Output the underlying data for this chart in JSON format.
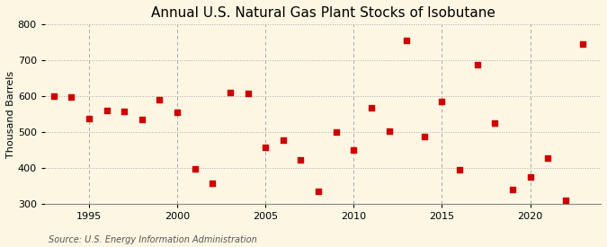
{
  "title": "Annual U.S. Natural Gas Plant Stocks of Isobutane",
  "ylabel": "Thousand Barrels",
  "source": "Source: U.S. Energy Information Administration",
  "years": [
    1993,
    1994,
    1995,
    1996,
    1997,
    1998,
    1999,
    2000,
    2001,
    2002,
    2003,
    2004,
    2005,
    2006,
    2007,
    2008,
    2009,
    2010,
    2011,
    2012,
    2013,
    2014,
    2015,
    2016,
    2017,
    2018,
    2019,
    2020,
    2021,
    2022,
    2023
  ],
  "values": [
    600,
    597,
    537,
    560,
    557,
    535,
    590,
    555,
    397,
    358,
    610,
    608,
    459,
    478,
    422,
    336,
    500,
    450,
    568,
    502,
    755,
    487,
    585,
    395,
    689,
    526,
    340,
    375,
    428,
    310,
    745
  ],
  "marker_color": "#cc0000",
  "marker_size": 18,
  "ylim": [
    300,
    800
  ],
  "yticks": [
    300,
    400,
    500,
    600,
    700,
    800
  ],
  "xlim": [
    1992.5,
    2024
  ],
  "xticks": [
    1995,
    2000,
    2005,
    2010,
    2015,
    2020
  ],
  "bg_color": "#fdf6e3",
  "grid_color": "#aaaaaa",
  "title_fontsize": 11,
  "label_fontsize": 8,
  "tick_fontsize": 8,
  "source_fontsize": 7
}
